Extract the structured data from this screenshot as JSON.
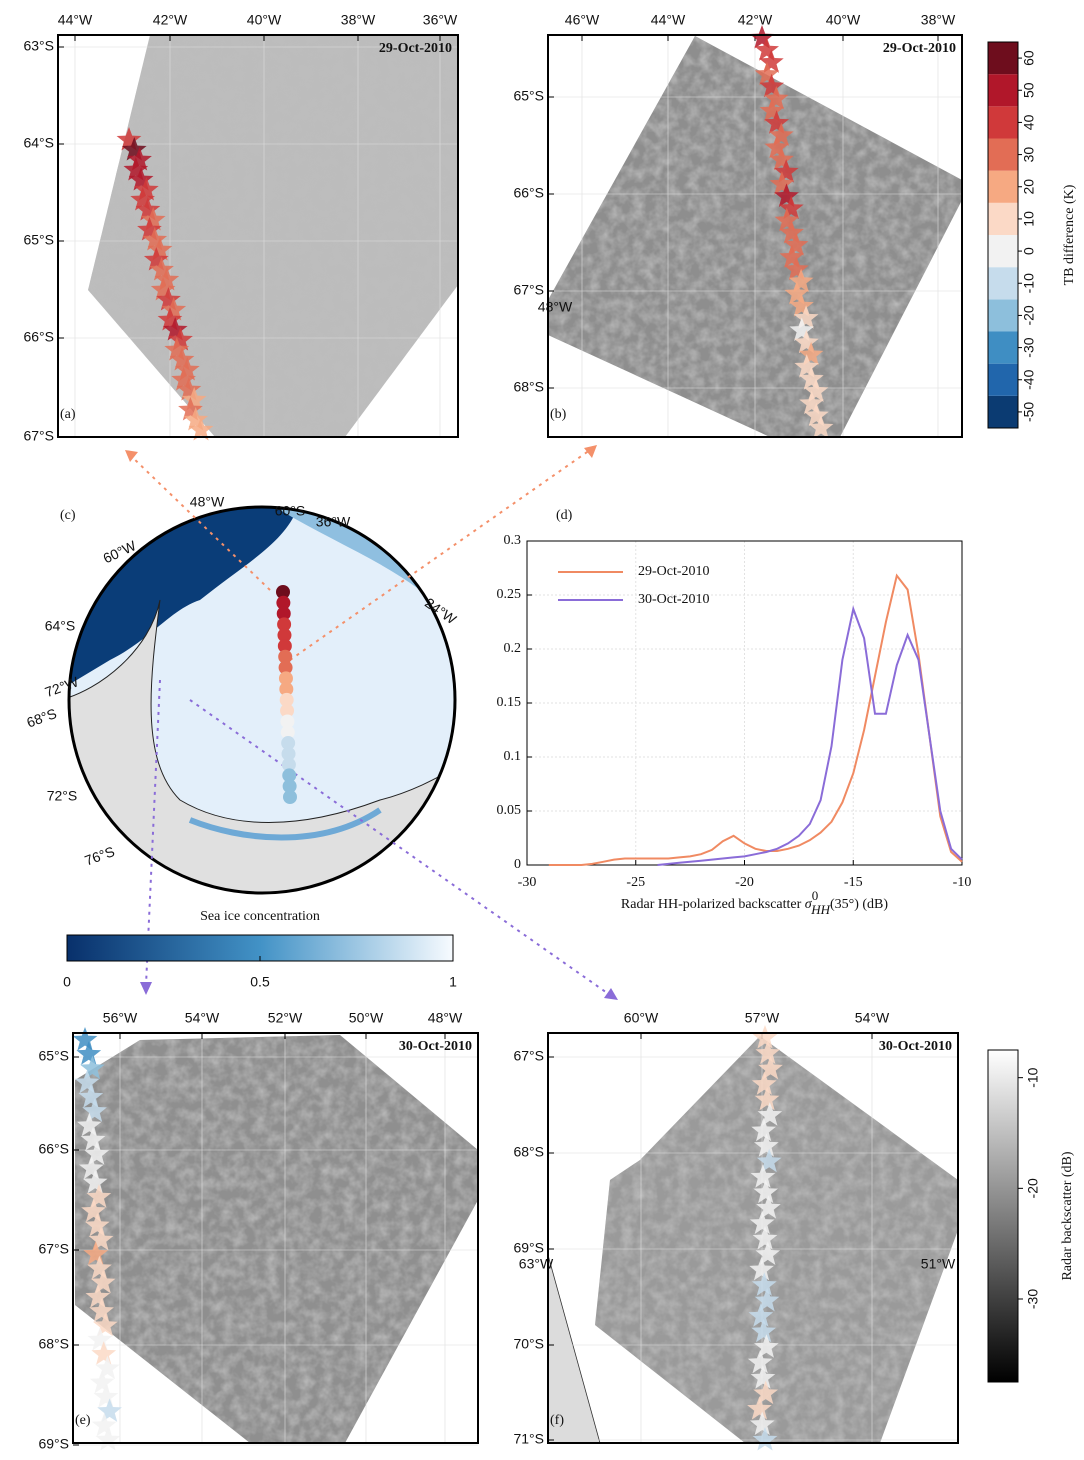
{
  "panels": {
    "a": {
      "label": "(a)",
      "date": "29-Oct-2010",
      "date_color": "#f4906a",
      "lon_labels": [
        "44°W",
        "42°W",
        "40°W",
        "38°W",
        "36°W"
      ],
      "lat_labels": [
        "63°S",
        "64°S",
        "65°S",
        "66°S",
        "67°S"
      ],
      "track": [
        40,
        60,
        50,
        50,
        50,
        40,
        40,
        40,
        30,
        40,
        30,
        30,
        40,
        30,
        30,
        30,
        40,
        30,
        40,
        50,
        40,
        30,
        30,
        30,
        30,
        30,
        20,
        30,
        20,
        20
      ]
    },
    "b": {
      "label": "(b)",
      "date": "29-Oct-2010",
      "date_color": "#f4906a",
      "lon_labels": [
        "46°W",
        "44°W",
        "42°W",
        "40°W",
        "38°W"
      ],
      "lat_labels": [
        "65°S",
        "66°S",
        "67°S",
        "68°S"
      ],
      "extra_labels": [
        "48°W"
      ],
      "track": [
        50,
        40,
        40,
        30,
        40,
        30,
        30,
        40,
        30,
        30,
        30,
        40,
        30,
        50,
        40,
        30,
        30,
        30,
        30,
        30,
        20,
        20,
        20,
        10,
        0,
        10,
        20,
        10,
        10,
        10,
        10,
        10,
        10
      ]
    },
    "c": {
      "label": "(c)",
      "map_labels": [
        "48°W",
        "60°S",
        "36°W",
        "60°W",
        "24°W",
        "64°S",
        "72°W",
        "68°S",
        "72°S",
        "76°S"
      ],
      "track": [
        60,
        50,
        50,
        40,
        40,
        40,
        30,
        30,
        20,
        20,
        10,
        10,
        0,
        0,
        -10,
        -10,
        -10,
        -20,
        -20,
        -20
      ]
    },
    "e": {
      "label": "(e)",
      "date": "30-Oct-2010",
      "date_color": "#8a6cd8",
      "lon_labels": [
        "56°W",
        "54°W",
        "52°W",
        "50°W",
        "48°W"
      ],
      "lat_labels": [
        "65°S",
        "66°S",
        "67°S",
        "68°S",
        "69°S"
      ],
      "track": [
        -30,
        -30,
        -20,
        -10,
        -10,
        -10,
        0,
        0,
        0,
        0,
        0,
        10,
        10,
        10,
        10,
        20,
        10,
        10,
        10,
        10,
        10,
        0,
        10,
        0,
        0,
        0,
        -10,
        0,
        0
      ]
    },
    "f": {
      "label": "(f)",
      "date": "30-Oct-2010",
      "date_color": "#8a6cd8",
      "lon_labels": [
        "60°W",
        "57°W",
        "54°W"
      ],
      "lat_labels": [
        "67°S",
        "68°S",
        "69°S",
        "70°S",
        "71°S"
      ],
      "extra_labels": [
        "63°W",
        "51°W"
      ],
      "track": [
        10,
        10,
        10,
        10,
        10,
        0,
        0,
        0,
        -10,
        0,
        0,
        0,
        0,
        0,
        0,
        0,
        -10,
        -10,
        -10,
        -10,
        0,
        0,
        0,
        10,
        10,
        0,
        -10
      ]
    }
  },
  "colorbars": {
    "tb": {
      "title": "TB difference (K)",
      "lim": [
        -55,
        65
      ],
      "ticks": [
        60,
        50,
        40,
        30,
        20,
        10,
        0,
        -10,
        -20,
        -30,
        -40,
        -50
      ],
      "colors": [
        "#0b3b72",
        "#2166ac",
        "#3f8ec3",
        "#8dbfdc",
        "#c6dcec",
        "#f2f2f2",
        "#fbd9c6",
        "#f6a982",
        "#e26d55",
        "#d0393a",
        "#b1172a",
        "#6e0d1d"
      ]
    },
    "radar": {
      "title": "Radar backscatter (dB)",
      "lim": [
        -37.5,
        -7.5
      ],
      "ticks": [
        -10,
        -20,
        -30
      ],
      "colors": [
        "#000000",
        "#ffffff"
      ]
    },
    "sic": {
      "title": "Sea ice concentration",
      "lim": [
        0,
        1
      ],
      "ticks": [
        0,
        0.5,
        1
      ],
      "colors": [
        "#08306b",
        "#4292c6",
        "#f7fbff"
      ]
    }
  },
  "chart_data": {
    "type": "line",
    "label": "(d)",
    "legend": "upper left",
    "grid": true,
    "xlabel": {
      "text": "Radar HH-polarized backscatter ",
      "symbol": "σ",
      "sub": "HH",
      "sup": "0",
      "rest": "(35°) (dB)"
    },
    "xlim": [
      -30,
      -10
    ],
    "ylim": [
      0,
      0.3
    ],
    "xticks": [
      -30,
      -25,
      -20,
      -15,
      -10
    ],
    "yticks": [
      0,
      0.05,
      0.1,
      0.15,
      0.2,
      0.25,
      0.3
    ],
    "x": [
      -29,
      -28.5,
      -28,
      -27.5,
      -27,
      -26.5,
      -26,
      -25.5,
      -25,
      -24.5,
      -24,
      -23.5,
      -23,
      -22.5,
      -22,
      -21.5,
      -21,
      -20.5,
      -20,
      -19.5,
      -19,
      -18.5,
      -18,
      -17.5,
      -17,
      -16.5,
      -16,
      -15.5,
      -15,
      -14.5,
      -14,
      -13.5,
      -13,
      -12.5,
      -12,
      -11.5,
      -11,
      -10.5,
      -10
    ],
    "series": [
      {
        "name": "29-Oct-2010",
        "color": "#f08a62",
        "values": [
          0,
          0,
          0,
          0,
          0.001,
          0.003,
          0.005,
          0.006,
          0.006,
          0.006,
          0.006,
          0.006,
          0.007,
          0.008,
          0.01,
          0.014,
          0.022,
          0.027,
          0.02,
          0.015,
          0.013,
          0.013,
          0.015,
          0.018,
          0.023,
          0.03,
          0.04,
          0.058,
          0.085,
          0.125,
          0.175,
          0.225,
          0.268,
          0.255,
          0.195,
          0.12,
          0.045,
          0.012,
          0.003
        ]
      },
      {
        "name": "30-Oct-2010",
        "color": "#8a6cd8",
        "values": [
          null,
          null,
          null,
          null,
          null,
          null,
          null,
          null,
          null,
          null,
          0,
          0.001,
          0.002,
          0.003,
          0.004,
          0.005,
          0.006,
          0.007,
          0.008,
          0.01,
          0.012,
          0.015,
          0.02,
          0.027,
          0.038,
          0.06,
          0.11,
          0.19,
          0.237,
          0.21,
          0.14,
          0.14,
          0.185,
          0.213,
          0.19,
          0.12,
          0.05,
          0.015,
          0.005
        ]
      }
    ]
  }
}
